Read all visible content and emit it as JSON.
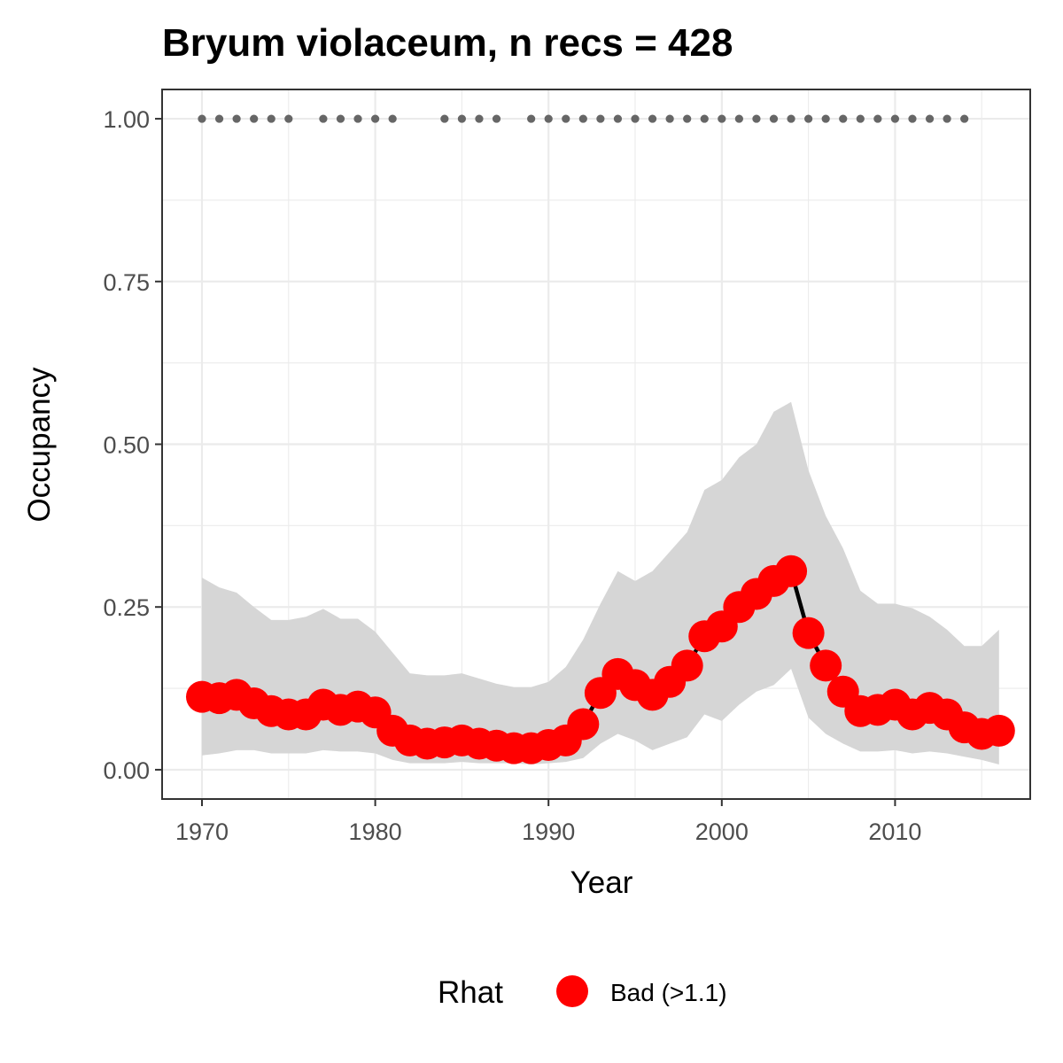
{
  "chart_data": {
    "type": "line",
    "title": "Bryum violaceum, n recs = 428",
    "xlabel": "Year",
    "ylabel": "Occupancy",
    "xlim": [
      1967.7,
      2017.8
    ],
    "ylim": [
      -0.045,
      1.045
    ],
    "x_ticks": [
      1970,
      1980,
      1990,
      2000,
      2010
    ],
    "x_tick_labels": [
      "1970",
      "1980",
      "1990",
      "2000",
      "2010"
    ],
    "y_ticks": [
      0,
      0.25,
      0.5,
      0.75,
      1.0
    ],
    "y_tick_labels": [
      "0.00",
      "0.25",
      "0.50",
      "0.75",
      "1.00"
    ],
    "grid": true,
    "years": [
      1970,
      1971,
      1972,
      1973,
      1974,
      1975,
      1976,
      1977,
      1978,
      1979,
      1980,
      1981,
      1982,
      1983,
      1984,
      1985,
      1986,
      1987,
      1988,
      1989,
      1990,
      1991,
      1992,
      1993,
      1994,
      1995,
      1996,
      1997,
      1998,
      1999,
      2000,
      2001,
      2002,
      2003,
      2004,
      2005,
      2006,
      2007,
      2008,
      2009,
      2010,
      2011,
      2012,
      2013,
      2014,
      2015,
      2016
    ],
    "occupancy": [
      0.112,
      0.11,
      0.115,
      0.102,
      0.09,
      0.085,
      0.085,
      0.1,
      0.092,
      0.097,
      0.088,
      0.06,
      0.045,
      0.04,
      0.042,
      0.045,
      0.04,
      0.037,
      0.033,
      0.033,
      0.038,
      0.045,
      0.07,
      0.118,
      0.147,
      0.13,
      0.115,
      0.135,
      0.16,
      0.205,
      0.22,
      0.25,
      0.27,
      0.29,
      0.305,
      0.21,
      0.16,
      0.12,
      0.09,
      0.092,
      0.1,
      0.085,
      0.095,
      0.085,
      0.065,
      0.055,
      0.06
    ],
    "upper": [
      0.295,
      0.28,
      0.272,
      0.25,
      0.23,
      0.23,
      0.235,
      0.247,
      0.232,
      0.232,
      0.212,
      0.18,
      0.148,
      0.145,
      0.145,
      0.148,
      0.14,
      0.132,
      0.127,
      0.127,
      0.135,
      0.158,
      0.2,
      0.255,
      0.305,
      0.29,
      0.305,
      0.335,
      0.365,
      0.43,
      0.445,
      0.48,
      0.5,
      0.55,
      0.565,
      0.46,
      0.39,
      0.34,
      0.275,
      0.255,
      0.255,
      0.248,
      0.235,
      0.215,
      0.19,
      0.19,
      0.215
    ],
    "lower": [
      0.022,
      0.025,
      0.03,
      0.03,
      0.025,
      0.025,
      0.025,
      0.03,
      0.028,
      0.028,
      0.025,
      0.015,
      0.01,
      0.01,
      0.01,
      0.012,
      0.01,
      0.01,
      0.01,
      0.008,
      0.01,
      0.012,
      0.018,
      0.04,
      0.055,
      0.045,
      0.03,
      0.04,
      0.05,
      0.085,
      0.075,
      0.1,
      0.12,
      0.13,
      0.155,
      0.08,
      0.055,
      0.04,
      0.028,
      0.028,
      0.03,
      0.025,
      0.028,
      0.025,
      0.02,
      0.015,
      0.008
    ],
    "record_years": [
      1970,
      1971,
      1972,
      1973,
      1974,
      1975,
      1977,
      1978,
      1979,
      1980,
      1981,
      1984,
      1985,
      1986,
      1987,
      1989,
      1990,
      1991,
      1992,
      1993,
      1994,
      1995,
      1996,
      1997,
      1998,
      1999,
      2000,
      2001,
      2002,
      2003,
      2004,
      2005,
      2006,
      2007,
      2008,
      2009,
      2010,
      2011,
      2012,
      2013,
      2014
    ],
    "record_value": 1.0,
    "legend": {
      "title": "Rhat",
      "entries": [
        {
          "label": "Bad (>1.1)",
          "color": "#ff0000"
        }
      ],
      "position": "bottom"
    },
    "colors": {
      "points": "#ff0000",
      "line": "#000000",
      "ribbon": "#d6d6d6",
      "records": "#666666",
      "grid": "#ebebeb",
      "panel_border": "#333333"
    }
  }
}
